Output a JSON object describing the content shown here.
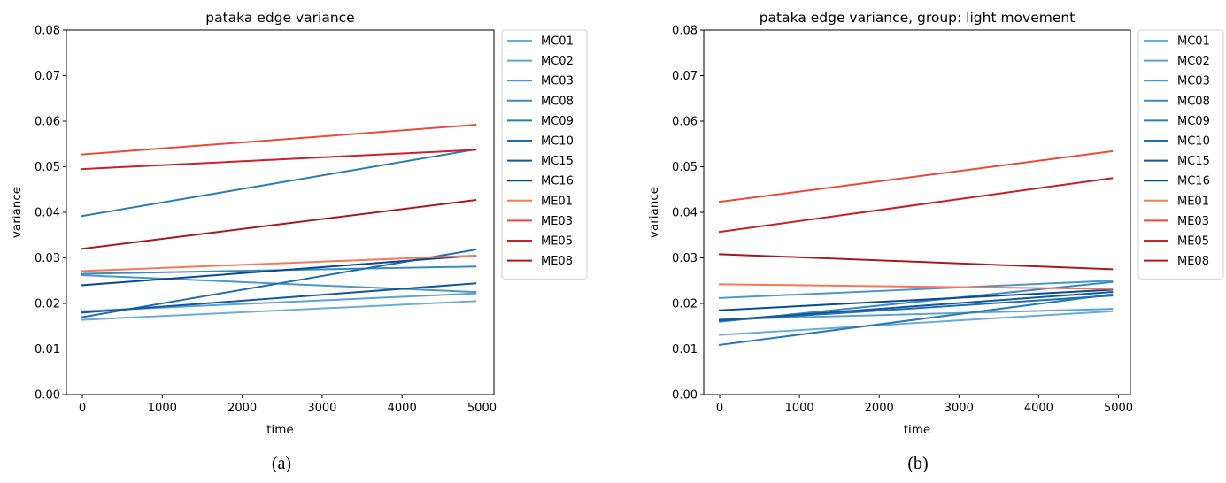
{
  "captions": [
    "(a)",
    "(b)"
  ],
  "chart_data": [
    {
      "type": "line",
      "title": "pataka edge variance",
      "xlabel": "time",
      "ylabel": "variance",
      "xlim": [
        -200,
        5150
      ],
      "ylim": [
        0,
        0.08
      ],
      "xticks": [
        0,
        1000,
        2000,
        3000,
        4000,
        5000
      ],
      "yticks": [
        0.0,
        0.01,
        0.02,
        0.03,
        0.04,
        0.05,
        0.06,
        0.07,
        0.08
      ],
      "x": [
        0,
        4920
      ],
      "legend": "outside-right",
      "series": [
        {
          "name": "MC01",
          "color": "#6aaed6",
          "values": [
            0.0164,
            0.0205
          ]
        },
        {
          "name": "MC02",
          "color": "#5ba3d0",
          "values": [
            0.0183,
            0.0222
          ]
        },
        {
          "name": "MC03",
          "color": "#4a98c9",
          "values": [
            0.0262,
            0.0225
          ]
        },
        {
          "name": "MC08",
          "color": "#3a8ac2",
          "values": [
            0.0265,
            0.0281
          ]
        },
        {
          "name": "MC09",
          "color": "#2c7bb6",
          "values": [
            0.0392,
            0.0538
          ]
        },
        {
          "name": "MC10",
          "color": "#1f6eb3",
          "values": [
            0.017,
            0.0318
          ]
        },
        {
          "name": "MC15",
          "color": "#12589f",
          "values": [
            0.018,
            0.0244
          ]
        },
        {
          "name": "MC16",
          "color": "#0a4a8e",
          "values": [
            0.024,
            0.0305
          ]
        },
        {
          "name": "ME01",
          "color": "#f87756",
          "values": [
            0.0271,
            0.0305
          ]
        },
        {
          "name": "ME03",
          "color": "#ec4a39",
          "values": [
            0.0527,
            0.0592
          ]
        },
        {
          "name": "ME05",
          "color": "#cb2026",
          "values": [
            0.0495,
            0.0537
          ]
        },
        {
          "name": "ME08",
          "color": "#a81a1d",
          "values": [
            0.032,
            0.0427
          ]
        }
      ]
    },
    {
      "type": "line",
      "title": "pataka edge variance, group: light movement",
      "xlabel": "time",
      "ylabel": "variance",
      "xlim": [
        -200,
        5150
      ],
      "ylim": [
        0,
        0.08
      ],
      "xticks": [
        0,
        1000,
        2000,
        3000,
        4000,
        5000
      ],
      "yticks": [
        0.0,
        0.01,
        0.02,
        0.03,
        0.04,
        0.05,
        0.06,
        0.07,
        0.08
      ],
      "x": [
        0,
        4920
      ],
      "legend": "outside-right",
      "series": [
        {
          "name": "MC01",
          "color": "#6aaed6",
          "values": [
            0.0131,
            0.0183
          ]
        },
        {
          "name": "MC02",
          "color": "#5ba3d0",
          "values": [
            0.0165,
            0.0188
          ]
        },
        {
          "name": "MC03",
          "color": "#4a98c9",
          "values": [
            0.0212,
            0.025
          ]
        },
        {
          "name": "MC08",
          "color": "#3a8ac2",
          "values": [
            0.016,
            0.0247
          ]
        },
        {
          "name": "MC09",
          "color": "#2c7bb6",
          "values": [
            0.0109,
            0.022
          ]
        },
        {
          "name": "MC10",
          "color": "#1f6eb3",
          "values": [
            0.0162,
            0.0217
          ]
        },
        {
          "name": "MC15",
          "color": "#12589f",
          "values": [
            0.0163,
            0.0225
          ]
        },
        {
          "name": "MC16",
          "color": "#0a4a8e",
          "values": [
            0.0185,
            0.023
          ]
        },
        {
          "name": "ME01",
          "color": "#f87756",
          "values": [
            0.0242,
            0.0232
          ]
        },
        {
          "name": "ME03",
          "color": "#ec4a39",
          "values": [
            0.0423,
            0.0534
          ]
        },
        {
          "name": "ME05",
          "color": "#cb2026",
          "values": [
            0.0357,
            0.0475
          ]
        },
        {
          "name": "ME08",
          "color": "#a81a1d",
          "values": [
            0.0308,
            0.0275
          ]
        }
      ]
    }
  ]
}
